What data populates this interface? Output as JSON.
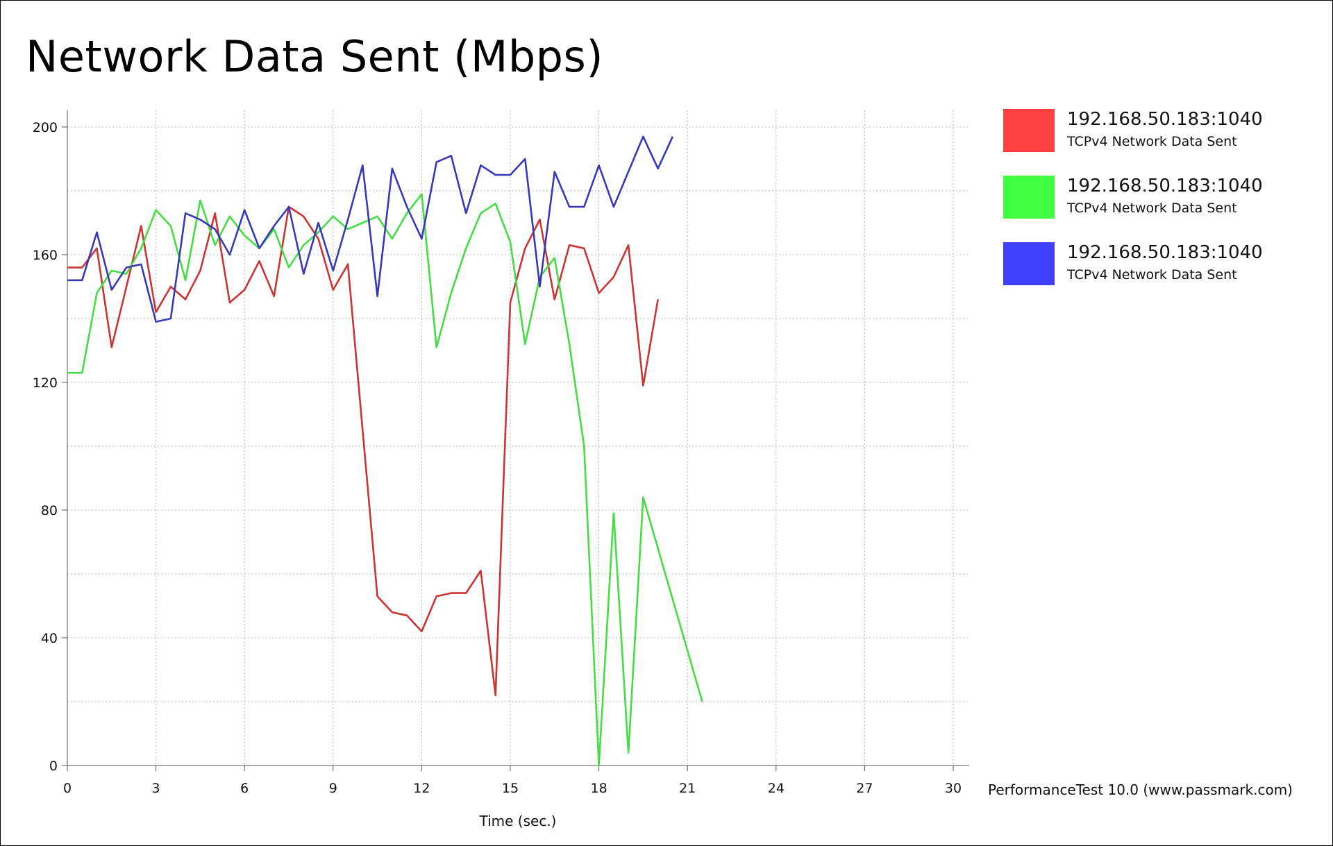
{
  "chart_data": {
    "type": "line",
    "title": "Network Data Sent (Mbps)",
    "xlabel": "Time (sec.)",
    "ylabel": "",
    "xlim": [
      0,
      30
    ],
    "ylim": [
      0,
      200
    ],
    "x_ticks": [
      0,
      3,
      6,
      9,
      12,
      15,
      18,
      21,
      24,
      27,
      30
    ],
    "y_ticks": [
      0,
      40,
      80,
      120,
      160,
      200
    ],
    "grid": true,
    "legend_position": "right",
    "series": [
      {
        "name": "192.168.50.183:1040",
        "description": "TCPv4 Network Data Sent",
        "color": "#ff4040",
        "line_color": "#cc3333",
        "points": [
          [
            0,
            156
          ],
          [
            0.5,
            156
          ],
          [
            1,
            162
          ],
          [
            1.5,
            131
          ],
          [
            2,
            150
          ],
          [
            2.5,
            169
          ],
          [
            3,
            142
          ],
          [
            3.5,
            150
          ],
          [
            4,
            146
          ],
          [
            4.5,
            155
          ],
          [
            5,
            173
          ],
          [
            5.5,
            145
          ],
          [
            6,
            149
          ],
          [
            6.5,
            158
          ],
          [
            7,
            147
          ],
          [
            7.5,
            175
          ],
          [
            8,
            172
          ],
          [
            8.5,
            165
          ],
          [
            9,
            149
          ],
          [
            9.5,
            157
          ],
          [
            10,
            105
          ],
          [
            10.5,
            53
          ],
          [
            11,
            48
          ],
          [
            11.5,
            47
          ],
          [
            12,
            42
          ],
          [
            12.5,
            53
          ],
          [
            13,
            54
          ],
          [
            13.5,
            54
          ],
          [
            14,
            61
          ],
          [
            14.5,
            22
          ],
          [
            15,
            145
          ],
          [
            15.5,
            162
          ],
          [
            16,
            171
          ],
          [
            16.5,
            146
          ],
          [
            17,
            163
          ],
          [
            17.5,
            162
          ],
          [
            18,
            148
          ],
          [
            18.5,
            153
          ],
          [
            19,
            163
          ],
          [
            19.5,
            119
          ],
          [
            20,
            146
          ]
        ]
      },
      {
        "name": "192.168.50.183:1040",
        "description": "TCPv4 Network Data Sent",
        "color": "#40ff40",
        "line_color": "#44dd44",
        "points": [
          [
            0,
            123
          ],
          [
            0.5,
            123
          ],
          [
            1,
            148
          ],
          [
            1.5,
            155
          ],
          [
            2,
            154
          ],
          [
            2.5,
            162
          ],
          [
            3,
            174
          ],
          [
            3.5,
            169
          ],
          [
            4,
            152
          ],
          [
            4.5,
            177
          ],
          [
            5,
            163
          ],
          [
            5.5,
            172
          ],
          [
            6,
            166
          ],
          [
            6.5,
            162
          ],
          [
            7,
            168
          ],
          [
            7.5,
            156
          ],
          [
            8,
            163
          ],
          [
            8.5,
            167
          ],
          [
            9,
            172
          ],
          [
            9.5,
            168
          ],
          [
            10,
            170
          ],
          [
            10.5,
            172
          ],
          [
            11,
            165
          ],
          [
            11.5,
            173
          ],
          [
            12,
            179
          ],
          [
            12.5,
            131
          ],
          [
            13,
            148
          ],
          [
            13.5,
            162
          ],
          [
            14,
            173
          ],
          [
            14.5,
            176
          ],
          [
            15,
            164
          ],
          [
            15.5,
            132
          ],
          [
            16,
            153
          ],
          [
            16.5,
            159
          ],
          [
            17,
            132
          ],
          [
            17.5,
            100
          ],
          [
            18,
            0
          ],
          [
            18.5,
            79
          ],
          [
            19,
            4
          ],
          [
            19.5,
            84
          ],
          [
            21.5,
            20
          ]
        ]
      },
      {
        "name": "192.168.50.183:1040",
        "description": "TCPv4 Network Data Sent",
        "color": "#4040ff",
        "line_color": "#3838b8",
        "points": [
          [
            0,
            152
          ],
          [
            0.5,
            152
          ],
          [
            1,
            167
          ],
          [
            1.5,
            149
          ],
          [
            2,
            156
          ],
          [
            2.5,
            157
          ],
          [
            3,
            139
          ],
          [
            3.5,
            140
          ],
          [
            4,
            173
          ],
          [
            4.5,
            171
          ],
          [
            5,
            168
          ],
          [
            5.5,
            160
          ],
          [
            6,
            174
          ],
          [
            6.5,
            162
          ],
          [
            7,
            169
          ],
          [
            7.5,
            175
          ],
          [
            8,
            154
          ],
          [
            8.5,
            170
          ],
          [
            9,
            155
          ],
          [
            9.5,
            171
          ],
          [
            10,
            188
          ],
          [
            10.5,
            147
          ],
          [
            11,
            187
          ],
          [
            11.5,
            175
          ],
          [
            12,
            165
          ],
          [
            12.5,
            189
          ],
          [
            13,
            191
          ],
          [
            13.5,
            173
          ],
          [
            14,
            188
          ],
          [
            14.5,
            185
          ],
          [
            15,
            185
          ],
          [
            15.5,
            190
          ],
          [
            16,
            150
          ],
          [
            16.5,
            186
          ],
          [
            17,
            175
          ],
          [
            17.5,
            175
          ],
          [
            18,
            188
          ],
          [
            18.5,
            175
          ],
          [
            19,
            186
          ],
          [
            19.5,
            197
          ],
          [
            20,
            187
          ],
          [
            20.5,
            197
          ]
        ]
      }
    ]
  },
  "footer": "PerformanceTest 10.0 (www.passmark.com)"
}
